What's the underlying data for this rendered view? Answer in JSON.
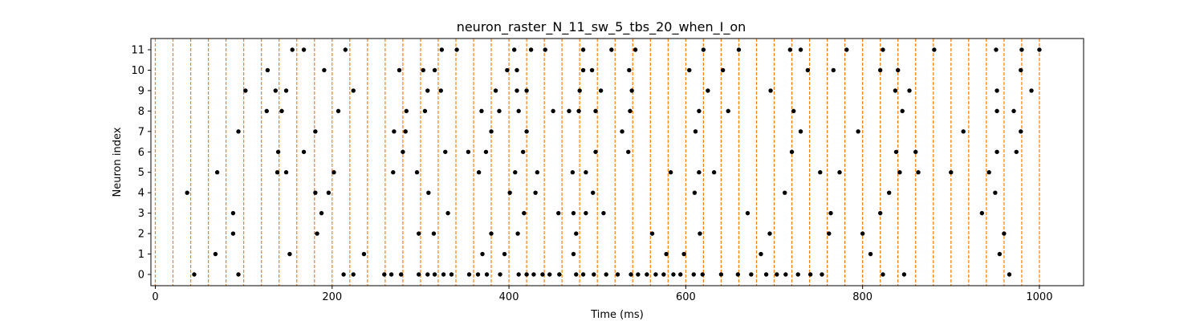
{
  "chart_data": {
    "type": "scatter",
    "title": "neuron_raster_N_11_sw_5_tbs_20_when_I_on",
    "xlabel": "Time (ms)",
    "ylabel": "Neuron index",
    "xlim": [
      -5,
      1050
    ],
    "ylim": [
      -0.55,
      11.55
    ],
    "xticks": [
      0,
      200,
      400,
      600,
      800,
      1000
    ],
    "yticks": [
      0,
      1,
      2,
      3,
      4,
      5,
      6,
      7,
      8,
      9,
      10,
      11
    ],
    "grid": false,
    "legend": "none",
    "vlines": {
      "values": [
        0,
        20,
        40,
        60,
        80,
        100,
        120,
        140,
        160,
        180,
        200,
        220,
        240,
        260,
        280,
        300,
        320,
        340,
        360,
        380,
        400,
        420,
        440,
        460,
        480,
        500,
        520,
        540,
        560,
        580,
        600,
        620,
        640,
        660,
        680,
        700,
        720,
        740,
        760,
        780,
        800,
        820,
        840,
        860,
        880,
        900,
        920,
        940,
        960,
        980,
        1000
      ],
      "color": "#ff7f0e",
      "style": "dashed"
    },
    "marker_color": "#000000",
    "spikes": [
      {
        "neuron": 0,
        "times": [
          44,
          94,
          213,
          224,
          259,
          267,
          278,
          298,
          308,
          316,
          326,
          335,
          355,
          365,
          375,
          390,
          411,
          420,
          428,
          438,
          446,
          457,
          476,
          484,
          496,
          510,
          523,
          538,
          546,
          556,
          566,
          575,
          586,
          594,
          609,
          619,
          640,
          659,
          674,
          691,
          703,
          713,
          727,
          741,
          754,
          823,
          847,
          966
        ]
      },
      {
        "neuron": 1,
        "times": [
          68,
          152,
          236,
          370,
          395,
          473,
          578,
          598,
          685,
          809,
          955
        ]
      },
      {
        "neuron": 2,
        "times": [
          88,
          183,
          298,
          315,
          380,
          410,
          476,
          562,
          616,
          695,
          762,
          800,
          960
        ]
      },
      {
        "neuron": 3,
        "times": [
          88,
          188,
          331,
          417,
          456,
          473,
          487,
          507,
          670,
          764,
          820,
          935
        ]
      },
      {
        "neuron": 4,
        "times": [
          36,
          181,
          196,
          309,
          401,
          430,
          495,
          610,
          712,
          830,
          950
        ]
      },
      {
        "neuron": 5,
        "times": [
          70,
          138,
          148,
          202,
          269,
          296,
          366,
          407,
          432,
          472,
          487,
          583,
          615,
          632,
          752,
          774,
          842,
          863,
          900,
          943
        ]
      },
      {
        "neuron": 6,
        "times": [
          139,
          168,
          280,
          328,
          354,
          374,
          416,
          498,
          535,
          720,
          838,
          860,
          952,
          974
        ]
      },
      {
        "neuron": 7,
        "times": [
          94,
          181,
          270,
          283,
          380,
          420,
          528,
          611,
          730,
          795,
          914,
          979
        ]
      },
      {
        "neuron": 8,
        "times": [
          126,
          143,
          207,
          284,
          305,
          369,
          389,
          411,
          450,
          468,
          479,
          498,
          537,
          615,
          648,
          722,
          845,
          952,
          971
        ]
      },
      {
        "neuron": 9,
        "times": [
          102,
          136,
          148,
          224,
          308,
          323,
          385,
          409,
          420,
          480,
          504,
          539,
          625,
          696,
          837,
          853,
          952,
          991
        ]
      },
      {
        "neuron": 10,
        "times": [
          127,
          191,
          276,
          303,
          316,
          398,
          409,
          484,
          494,
          536,
          604,
          642,
          738,
          767,
          820,
          840,
          979
        ]
      },
      {
        "neuron": 11,
        "times": [
          155,
          168,
          215,
          324,
          341,
          406,
          425,
          441,
          484,
          516,
          543,
          620,
          660,
          718,
          730,
          782,
          823,
          881,
          951,
          980,
          1000
        ]
      }
    ]
  }
}
